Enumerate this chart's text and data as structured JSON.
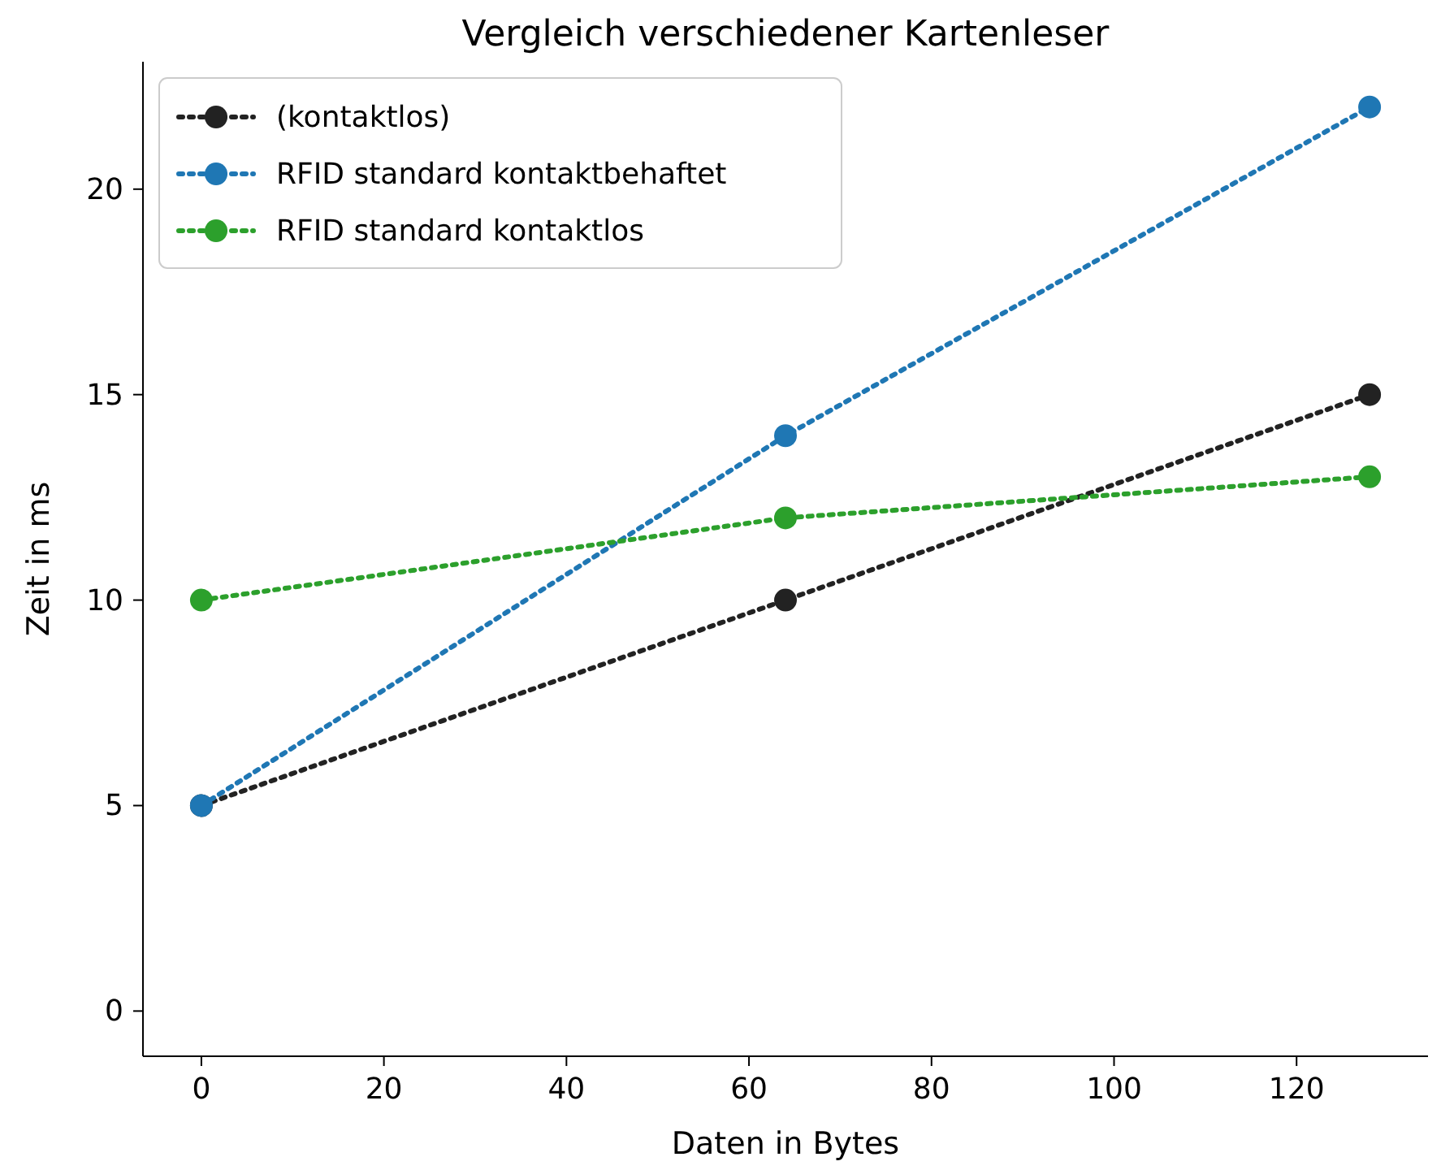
{
  "chart_data": {
    "type": "line",
    "title": "Vergleich verschiedener Kartenleser",
    "xlabel": "Daten in Bytes",
    "ylabel": "Zeit in ms",
    "x": [
      0,
      64,
      128
    ],
    "series": [
      {
        "name": "(kontaktlos)",
        "color": "#222222",
        "values": [
          5,
          10,
          15
        ]
      },
      {
        "name": "RFID standard kontaktbehaftet",
        "color": "#1f77b4",
        "values": [
          5,
          14,
          22
        ]
      },
      {
        "name": "RFID standard kontaktlos",
        "color": "#2ca02c",
        "values": [
          10,
          12,
          13
        ]
      }
    ],
    "xlim": [
      -6.4,
      134.4
    ],
    "ylim": [
      -1.1,
      23.1
    ],
    "xticks": [
      0,
      20,
      40,
      60,
      80,
      100,
      120
    ],
    "yticks": [
      0,
      5,
      10,
      15,
      20
    ],
    "legend": "top left",
    "marker": "circle",
    "line_style": "dotted",
    "grid": false
  }
}
